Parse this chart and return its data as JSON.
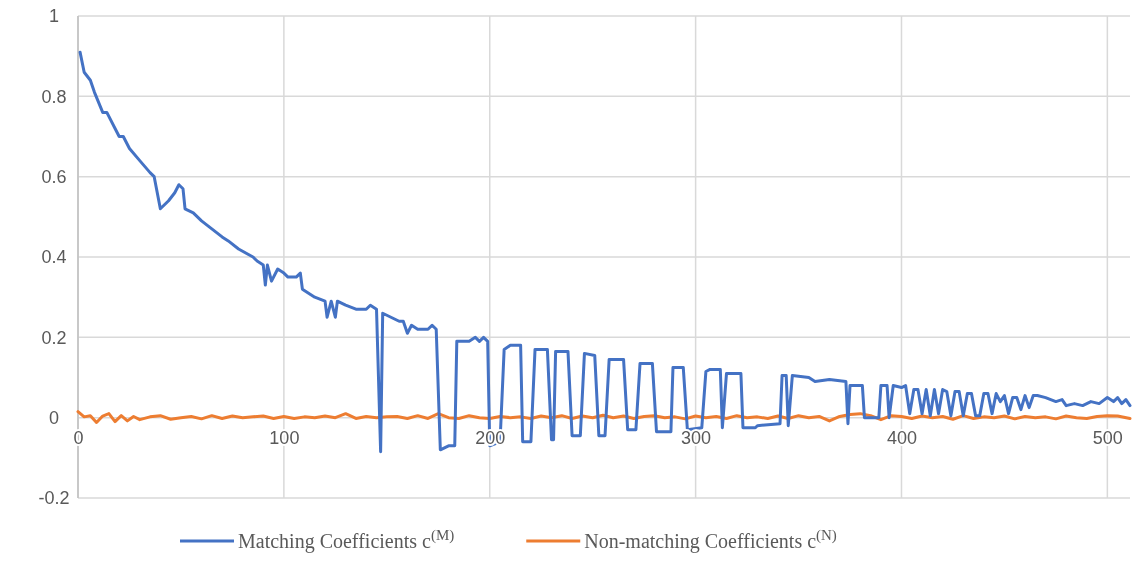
{
  "chart_data": {
    "type": "line",
    "xlim": [
      0,
      511
    ],
    "xticks": [
      0,
      100,
      200,
      300,
      400,
      500
    ],
    "ylim": [
      -0.2,
      1
    ],
    "yticks": [
      -0.2,
      0,
      0.2,
      0.4,
      0.6,
      0.8,
      1
    ],
    "grid": true,
    "legend": "bottom",
    "marker": "none",
    "line_style": "solid",
    "series": [
      {
        "name": "Matching Coefficients c$^{(M)}$",
        "color": "#4472c4",
        "x": [
          1,
          3,
          6,
          8,
          12,
          14,
          18,
          20,
          22,
          25,
          30,
          35,
          37,
          40,
          44,
          47,
          49,
          51,
          52,
          56,
          60,
          65,
          70,
          73,
          78,
          85,
          87,
          90,
          91,
          92,
          94,
          97,
          100,
          102,
          106,
          108,
          109,
          115,
          120,
          121,
          123,
          125,
          126,
          130,
          135,
          140,
          142,
          145,
          147,
          148,
          152,
          156,
          158,
          160,
          162,
          165,
          170,
          172,
          174,
          176,
          180,
          183,
          184,
          190,
          193,
          195,
          197,
          199,
          200,
          205,
          207,
          210,
          215,
          216,
          220,
          222,
          228,
          230,
          231,
          232,
          238,
          240,
          244,
          246,
          251,
          253,
          256,
          258,
          265,
          267,
          271,
          273,
          279,
          281,
          288,
          289,
          294,
          296,
          303,
          305,
          307,
          312,
          313,
          315,
          322,
          323,
          329,
          330,
          341,
          342,
          344,
          345,
          347,
          355,
          358,
          365,
          373,
          374,
          375,
          381,
          382,
          389,
          390,
          393,
          394,
          396,
          400,
          402,
          404,
          406,
          408,
          410,
          412,
          414,
          416,
          418,
          420,
          422,
          424,
          426,
          428,
          430,
          432,
          434,
          436,
          438,
          440,
          442,
          444,
          446,
          448,
          450,
          452,
          454,
          456,
          458,
          460,
          462,
          464,
          466,
          470,
          475,
          478,
          480,
          484,
          488,
          492,
          496,
          500,
          503,
          505,
          507,
          509,
          511
        ],
        "values": [
          0.91,
          0.86,
          0.84,
          0.81,
          0.76,
          0.76,
          0.72,
          0.7,
          0.7,
          0.67,
          0.64,
          0.61,
          0.6,
          0.52,
          0.54,
          0.56,
          0.58,
          0.57,
          0.52,
          0.51,
          0.49,
          0.47,
          0.45,
          0.44,
          0.42,
          0.4,
          0.39,
          0.38,
          0.33,
          0.38,
          0.34,
          0.37,
          0.36,
          0.35,
          0.35,
          0.36,
          0.32,
          0.3,
          0.29,
          0.25,
          0.29,
          0.25,
          0.29,
          0.28,
          0.27,
          0.27,
          0.28,
          0.27,
          -0.085,
          0.26,
          0.25,
          0.24,
          0.24,
          0.21,
          0.23,
          0.22,
          0.22,
          0.23,
          0.22,
          -0.08,
          -0.07,
          -0.07,
          0.19,
          0.19,
          0.2,
          0.19,
          0.2,
          0.19,
          -0.07,
          -0.06,
          0.17,
          0.18,
          0.18,
          -0.06,
          -0.06,
          0.17,
          0.17,
          -0.055,
          -0.055,
          0.165,
          0.165,
          -0.045,
          -0.045,
          0.16,
          0.155,
          -0.045,
          -0.045,
          0.145,
          0.145,
          -0.03,
          -0.03,
          0.135,
          0.135,
          -0.035,
          -0.035,
          0.125,
          0.125,
          -0.03,
          -0.025,
          0.115,
          0.12,
          0.12,
          -0.025,
          0.11,
          0.11,
          -0.025,
          -0.025,
          -0.02,
          -0.015,
          0.105,
          0.105,
          -0.02,
          0.105,
          0.1,
          0.09,
          0.095,
          0.09,
          -0.015,
          0.08,
          0.08,
          0,
          0,
          0.08,
          0.08,
          0,
          0.08,
          0.075,
          0.08,
          0.01,
          0.07,
          0.07,
          0.01,
          0.07,
          0.005,
          0.07,
          0.01,
          0.07,
          0.065,
          0.005,
          0.065,
          0.065,
          0.005,
          0.06,
          0.06,
          0.005,
          0.005,
          0.06,
          0.06,
          0.01,
          0.06,
          0.04,
          0.055,
          0.01,
          0.05,
          0.05,
          0.02,
          0.055,
          0.025,
          0.055,
          0.055,
          0.05,
          0.04,
          0.045,
          0.03,
          0.035,
          0.03,
          0.04,
          0.035,
          0.05,
          0.04,
          0.05,
          0.035,
          0.045,
          0.03
        ]
      },
      {
        "name": "Non-matching Coefficients c$^{(N)}$",
        "color": "#ed7d31",
        "x": [
          0,
          3,
          6,
          9,
          12,
          15,
          18,
          21,
          24,
          27,
          30,
          35,
          40,
          45,
          50,
          55,
          60,
          65,
          70,
          75,
          80,
          85,
          90,
          95,
          100,
          105,
          110,
          115,
          120,
          125,
          130,
          135,
          140,
          145,
          150,
          155,
          160,
          165,
          170,
          175,
          180,
          185,
          190,
          195,
          200,
          205,
          210,
          215,
          220,
          225,
          230,
          235,
          240,
          245,
          250,
          255,
          260,
          265,
          270,
          275,
          280,
          285,
          290,
          295,
          300,
          305,
          310,
          315,
          320,
          325,
          330,
          335,
          340,
          345,
          350,
          355,
          360,
          365,
          370,
          375,
          380,
          385,
          390,
          395,
          400,
          405,
          410,
          415,
          420,
          425,
          430,
          435,
          440,
          445,
          450,
          455,
          460,
          465,
          470,
          475,
          480,
          485,
          490,
          495,
          500,
          505,
          511
        ],
        "values": [
          0.015,
          0.002,
          0.005,
          -0.012,
          0.004,
          0.01,
          -0.01,
          0.005,
          -0.008,
          0.003,
          -0.005,
          0.002,
          0.005,
          -0.004,
          0,
          0.003,
          -0.003,
          0.005,
          -0.002,
          0.004,
          0,
          0.002,
          0.004,
          -0.002,
          0.003,
          -0.002,
          0.002,
          0,
          0.004,
          0,
          0.01,
          -0.002,
          0.003,
          0,
          0.002,
          0.003,
          -0.002,
          0.005,
          -0.002,
          0.01,
          0,
          -0.002,
          0.005,
          0,
          -0.002,
          0.003,
          0,
          0.002,
          -0.002,
          0.004,
          0,
          0.005,
          -0.002,
          0.004,
          0,
          0.006,
          0,
          0.004,
          -0.002,
          0.003,
          0.005,
          0,
          0.002,
          -0.003,
          0.004,
          0,
          0.003,
          -0.002,
          0.005,
          0,
          0.002,
          -0.002,
          0.004,
          -0.002,
          0.005,
          0,
          0.003,
          -0.008,
          0.003,
          0.008,
          0.01,
          0.005,
          -0.005,
          0.005,
          0.003,
          -0.002,
          0.004,
          0,
          0.003,
          -0.004,
          0.005,
          -0.002,
          0.002,
          0,
          0.004,
          -0.003,
          0.003,
          0,
          0.002,
          -0.003,
          0.004,
          0,
          -0.002,
          0.003,
          0.005,
          0.004,
          -0.002
        ]
      }
    ]
  }
}
